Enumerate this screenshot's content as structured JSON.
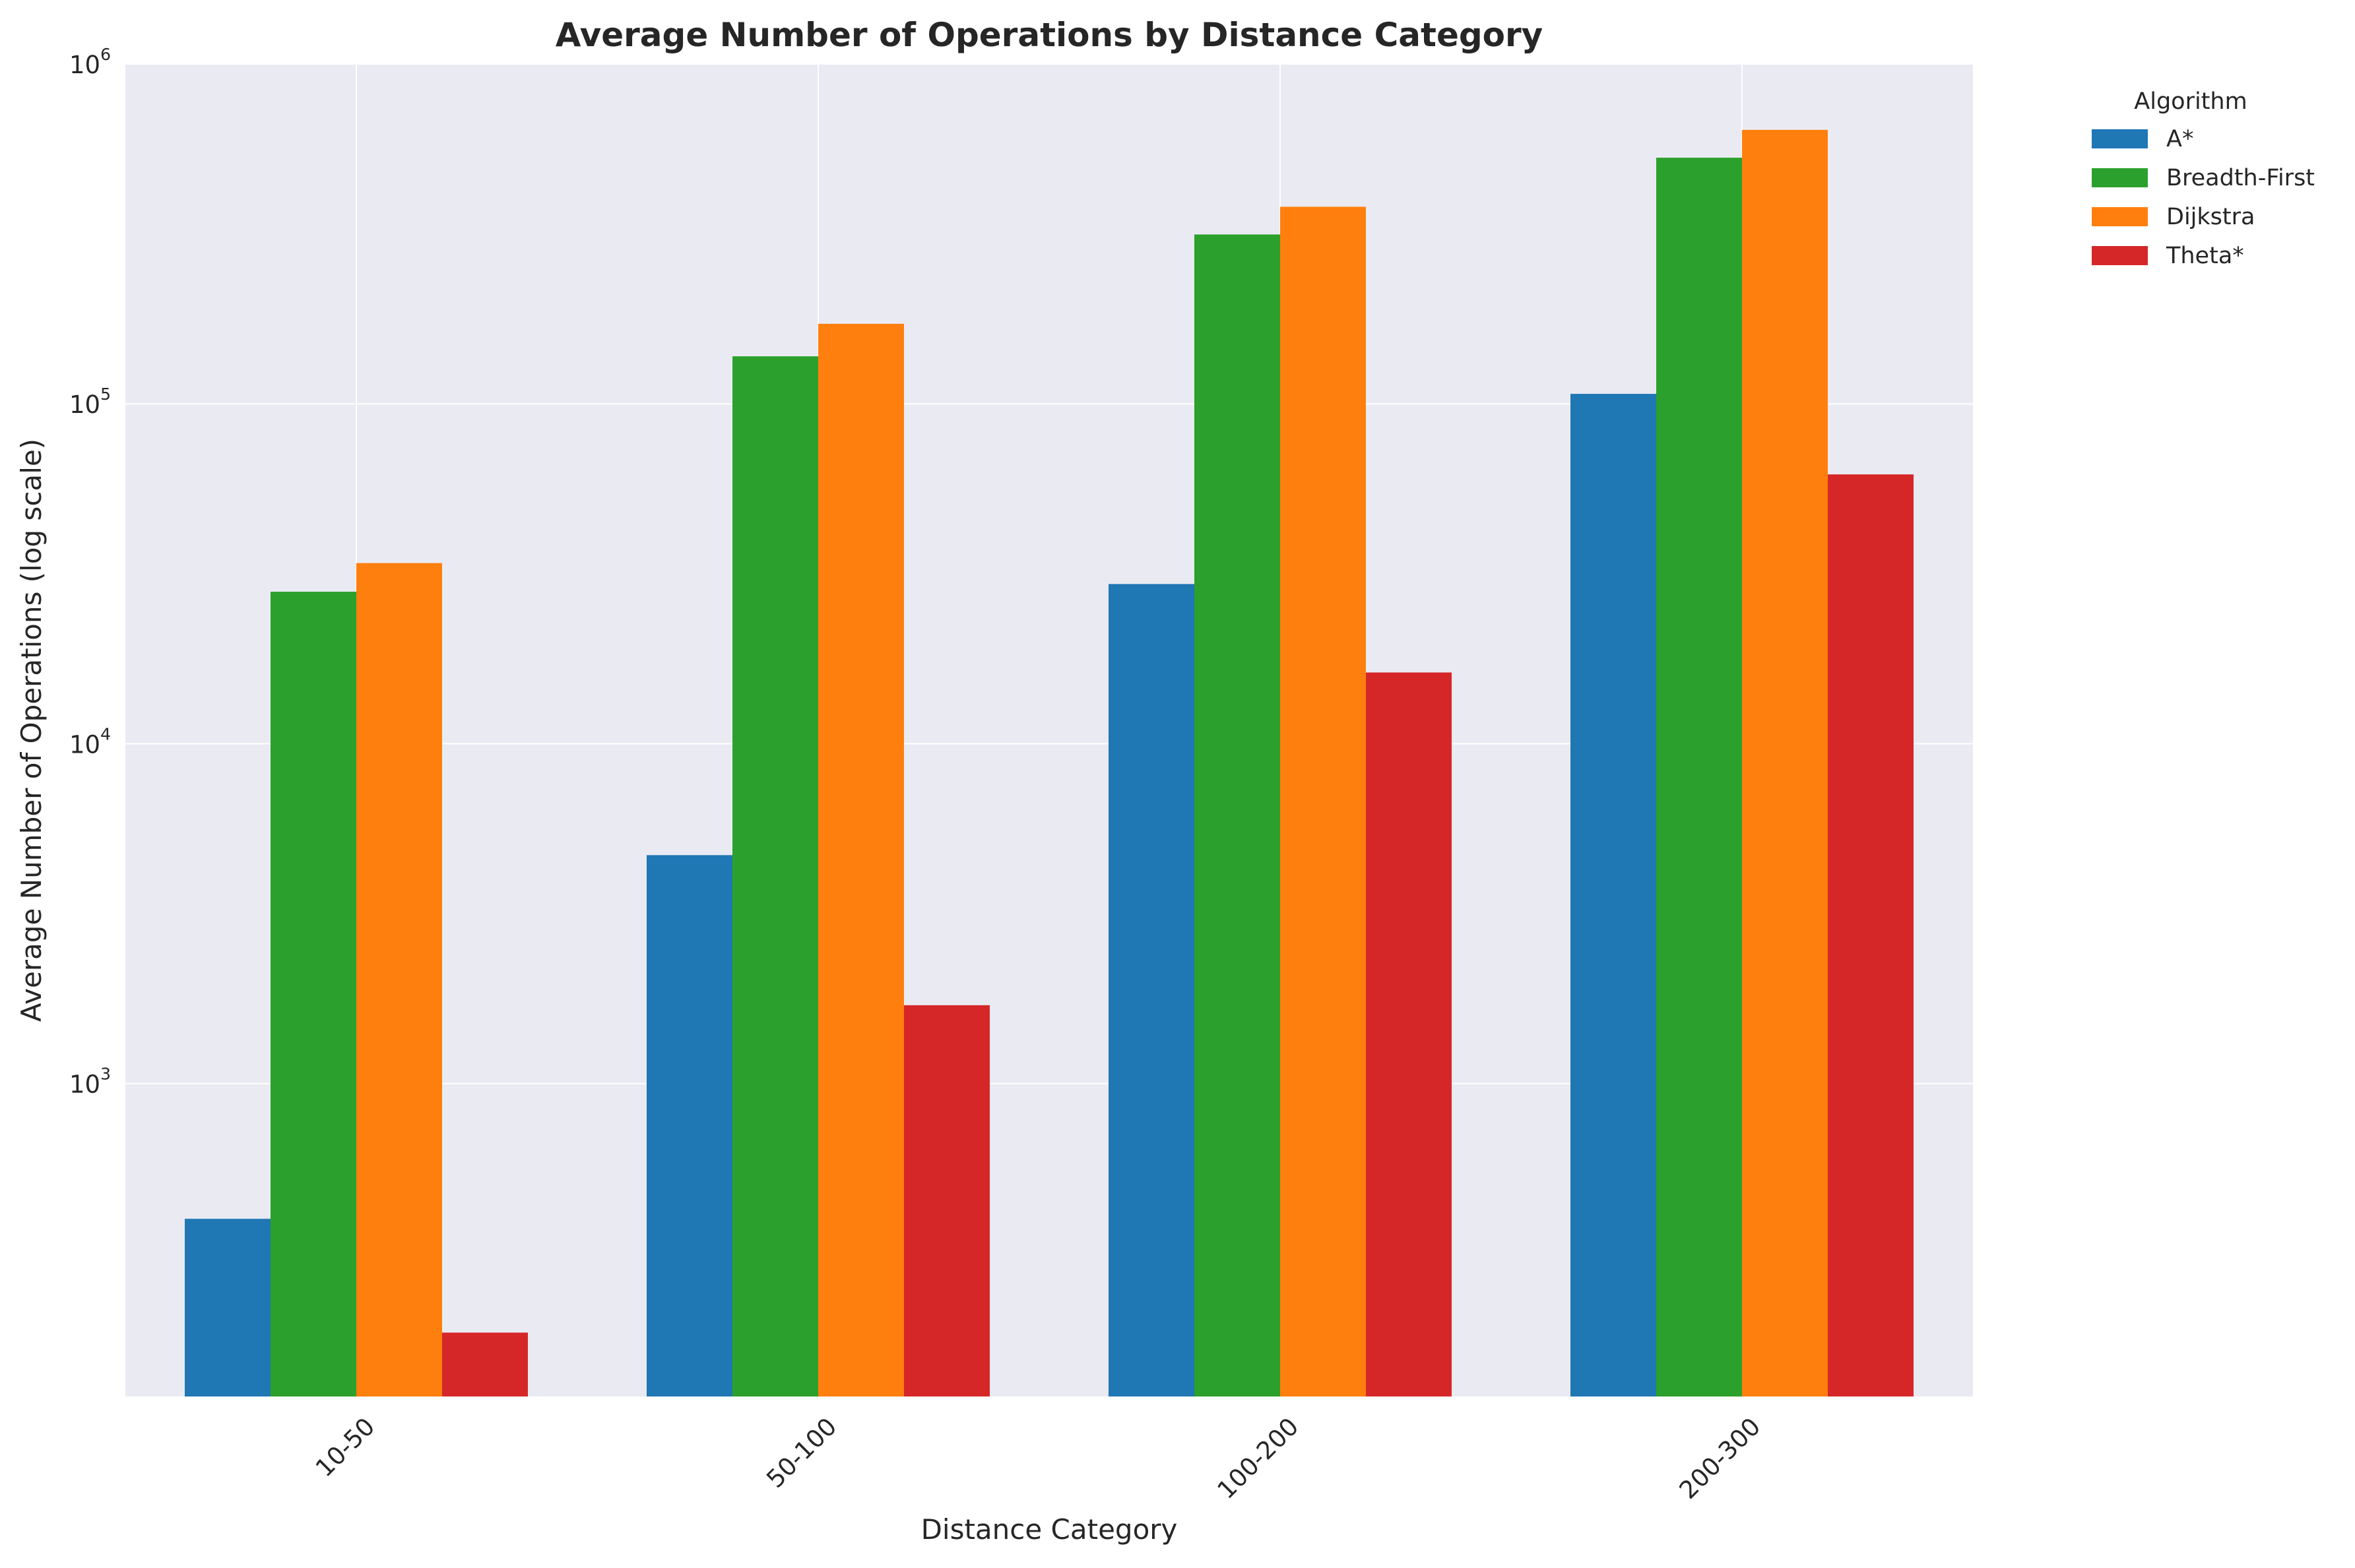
{
  "chart_data": {
    "type": "bar",
    "title": "Average Number of Operations by Distance Category",
    "xlabel": "Distance Category",
    "ylabel": "Average Number of Operations (log scale)",
    "yscale": "log",
    "ylim": [
      120,
      1000000
    ],
    "y_ticks": [
      {
        "base": "10",
        "exp": "3",
        "value": 1000
      },
      {
        "base": "10",
        "exp": "4",
        "value": 10000
      },
      {
        "base": "10",
        "exp": "5",
        "value": 100000
      },
      {
        "base": "10",
        "exp": "6",
        "value": 1000000
      }
    ],
    "grid": true,
    "legend_title": "Algorithm",
    "legend_position": "outside-top-right",
    "categories": [
      "10-50",
      "50-100",
      "100-200",
      "200-300"
    ],
    "series": [
      {
        "name": "A*",
        "color": "#1f77b4",
        "values": [
          400,
          4700,
          29500,
          107000
        ]
      },
      {
        "name": "Breadth-First",
        "color": "#2ca02c",
        "values": [
          28000,
          138000,
          315000,
          530000
        ]
      },
      {
        "name": "Dijkstra",
        "color": "#ff7f0e",
        "values": [
          34000,
          172000,
          380000,
          640000
        ]
      },
      {
        "name": "Theta*",
        "color": "#d62728",
        "values": [
          185,
          1700,
          16200,
          62000
        ]
      }
    ],
    "plot_background": "#eaeaf2",
    "grid_color": "#ffffff"
  }
}
